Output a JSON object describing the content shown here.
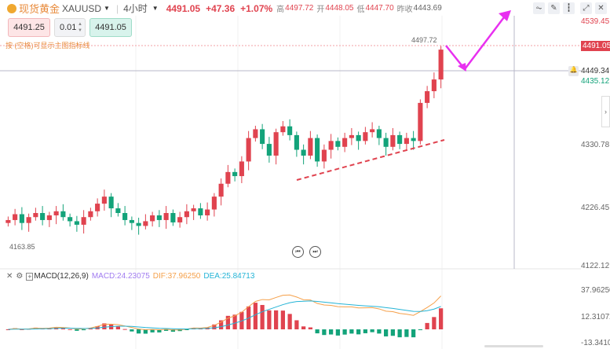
{
  "header": {
    "name": "现货黄金",
    "symbol": "XAUUSD",
    "interval": "4小时",
    "price": "4491.05",
    "change": "+47.36",
    "change_pct": "+1.07%",
    "high_label": "高",
    "high": "4497.72",
    "open_label": "开",
    "open": "4448.05",
    "low_label": "低",
    "low": "4447.70",
    "prev_label": "昨收",
    "prev_close": "4443.69"
  },
  "trade": {
    "sell_price": "4491.25",
    "lot": "0.01",
    "buy_price": "4491.05"
  },
  "hint": "按 (空格)可显示主图指标线",
  "price_axis": {
    "labels": [
      "4539.45",
      "4435.12",
      "4330.78",
      "4226.45",
      "4122.12"
    ],
    "current": "4491.05",
    "crosshair": "4449.34"
  },
  "chart": {
    "high_marker": "4497.72",
    "low_marker": "4163.85",
    "closes": [
      4200,
      4210,
      4195,
      4205,
      4212,
      4200,
      4208,
      4215,
      4205,
      4198,
      4192,
      4205,
      4215,
      4228,
      4240,
      4220,
      4212,
      4200,
      4195,
      4190,
      4198,
      4208,
      4200,
      4212,
      4196,
      4205,
      4215,
      4220,
      4208,
      4218,
      4240,
      4262,
      4282,
      4275,
      4300,
      4340,
      4355,
      4330,
      4310,
      4350,
      4360,
      4345,
      4320,
      4310,
      4340,
      4300,
      4320,
      4335,
      4325,
      4340,
      4345,
      4335,
      4350,
      4355,
      4340,
      4325,
      4345,
      4330,
      4340,
      4335,
      4400,
      4420,
      4440,
      4491
    ],
    "colors": {
      "up": "#e0434f",
      "down": "#13a37a"
    }
  },
  "macd": {
    "title": "MACD(12,26,9)",
    "macd": "MACD:24.23075",
    "dif": "DIF:37.96250",
    "dea": "DEA:25.84713",
    "axis": [
      "37.96250",
      "12.31072",
      "-13.34107"
    ]
  }
}
